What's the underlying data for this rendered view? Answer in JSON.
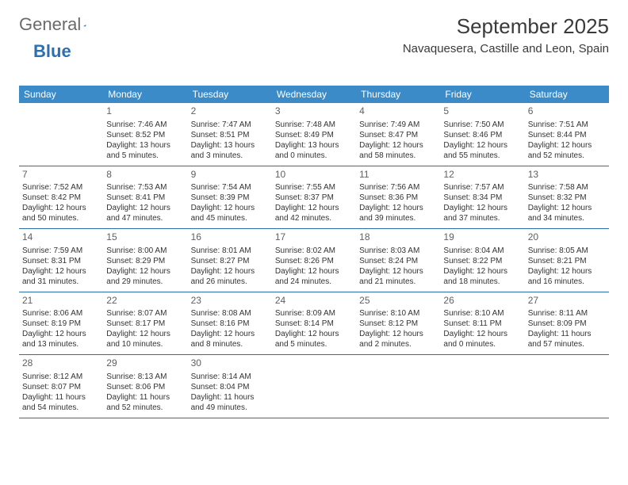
{
  "logo": {
    "part1": "General",
    "part2": "Blue"
  },
  "title": "September 2025",
  "location": "Navaquesera, Castille and Leon, Spain",
  "weekdays": [
    "Sunday",
    "Monday",
    "Tuesday",
    "Wednesday",
    "Thursday",
    "Friday",
    "Saturday"
  ],
  "colors": {
    "header_bg": "#3b8bc9",
    "header_text": "#ffffff",
    "week_border": "#2c6fa8",
    "logo_blue": "#2c6fb3",
    "text": "#333333"
  },
  "typography": {
    "title_fontsize": 26,
    "location_fontsize": 15,
    "weekday_fontsize": 12,
    "daynum_fontsize": 12,
    "cell_fontsize": 10
  },
  "weeks": [
    [
      null,
      {
        "n": "1",
        "sr": "Sunrise: 7:46 AM",
        "ss": "Sunset: 8:52 PM",
        "dl": "Daylight: 13 hours and 5 minutes."
      },
      {
        "n": "2",
        "sr": "Sunrise: 7:47 AM",
        "ss": "Sunset: 8:51 PM",
        "dl": "Daylight: 13 hours and 3 minutes."
      },
      {
        "n": "3",
        "sr": "Sunrise: 7:48 AM",
        "ss": "Sunset: 8:49 PM",
        "dl": "Daylight: 13 hours and 0 minutes."
      },
      {
        "n": "4",
        "sr": "Sunrise: 7:49 AM",
        "ss": "Sunset: 8:47 PM",
        "dl": "Daylight: 12 hours and 58 minutes."
      },
      {
        "n": "5",
        "sr": "Sunrise: 7:50 AM",
        "ss": "Sunset: 8:46 PM",
        "dl": "Daylight: 12 hours and 55 minutes."
      },
      {
        "n": "6",
        "sr": "Sunrise: 7:51 AM",
        "ss": "Sunset: 8:44 PM",
        "dl": "Daylight: 12 hours and 52 minutes."
      }
    ],
    [
      {
        "n": "7",
        "sr": "Sunrise: 7:52 AM",
        "ss": "Sunset: 8:42 PM",
        "dl": "Daylight: 12 hours and 50 minutes."
      },
      {
        "n": "8",
        "sr": "Sunrise: 7:53 AM",
        "ss": "Sunset: 8:41 PM",
        "dl": "Daylight: 12 hours and 47 minutes."
      },
      {
        "n": "9",
        "sr": "Sunrise: 7:54 AM",
        "ss": "Sunset: 8:39 PM",
        "dl": "Daylight: 12 hours and 45 minutes."
      },
      {
        "n": "10",
        "sr": "Sunrise: 7:55 AM",
        "ss": "Sunset: 8:37 PM",
        "dl": "Daylight: 12 hours and 42 minutes."
      },
      {
        "n": "11",
        "sr": "Sunrise: 7:56 AM",
        "ss": "Sunset: 8:36 PM",
        "dl": "Daylight: 12 hours and 39 minutes."
      },
      {
        "n": "12",
        "sr": "Sunrise: 7:57 AM",
        "ss": "Sunset: 8:34 PM",
        "dl": "Daylight: 12 hours and 37 minutes."
      },
      {
        "n": "13",
        "sr": "Sunrise: 7:58 AM",
        "ss": "Sunset: 8:32 PM",
        "dl": "Daylight: 12 hours and 34 minutes."
      }
    ],
    [
      {
        "n": "14",
        "sr": "Sunrise: 7:59 AM",
        "ss": "Sunset: 8:31 PM",
        "dl": "Daylight: 12 hours and 31 minutes."
      },
      {
        "n": "15",
        "sr": "Sunrise: 8:00 AM",
        "ss": "Sunset: 8:29 PM",
        "dl": "Daylight: 12 hours and 29 minutes."
      },
      {
        "n": "16",
        "sr": "Sunrise: 8:01 AM",
        "ss": "Sunset: 8:27 PM",
        "dl": "Daylight: 12 hours and 26 minutes."
      },
      {
        "n": "17",
        "sr": "Sunrise: 8:02 AM",
        "ss": "Sunset: 8:26 PM",
        "dl": "Daylight: 12 hours and 24 minutes."
      },
      {
        "n": "18",
        "sr": "Sunrise: 8:03 AM",
        "ss": "Sunset: 8:24 PM",
        "dl": "Daylight: 12 hours and 21 minutes."
      },
      {
        "n": "19",
        "sr": "Sunrise: 8:04 AM",
        "ss": "Sunset: 8:22 PM",
        "dl": "Daylight: 12 hours and 18 minutes."
      },
      {
        "n": "20",
        "sr": "Sunrise: 8:05 AM",
        "ss": "Sunset: 8:21 PM",
        "dl": "Daylight: 12 hours and 16 minutes."
      }
    ],
    [
      {
        "n": "21",
        "sr": "Sunrise: 8:06 AM",
        "ss": "Sunset: 8:19 PM",
        "dl": "Daylight: 12 hours and 13 minutes."
      },
      {
        "n": "22",
        "sr": "Sunrise: 8:07 AM",
        "ss": "Sunset: 8:17 PM",
        "dl": "Daylight: 12 hours and 10 minutes."
      },
      {
        "n": "23",
        "sr": "Sunrise: 8:08 AM",
        "ss": "Sunset: 8:16 PM",
        "dl": "Daylight: 12 hours and 8 minutes."
      },
      {
        "n": "24",
        "sr": "Sunrise: 8:09 AM",
        "ss": "Sunset: 8:14 PM",
        "dl": "Daylight: 12 hours and 5 minutes."
      },
      {
        "n": "25",
        "sr": "Sunrise: 8:10 AM",
        "ss": "Sunset: 8:12 PM",
        "dl": "Daylight: 12 hours and 2 minutes."
      },
      {
        "n": "26",
        "sr": "Sunrise: 8:10 AM",
        "ss": "Sunset: 8:11 PM",
        "dl": "Daylight: 12 hours and 0 minutes."
      },
      {
        "n": "27",
        "sr": "Sunrise: 8:11 AM",
        "ss": "Sunset: 8:09 PM",
        "dl": "Daylight: 11 hours and 57 minutes."
      }
    ],
    [
      {
        "n": "28",
        "sr": "Sunrise: 8:12 AM",
        "ss": "Sunset: 8:07 PM",
        "dl": "Daylight: 11 hours and 54 minutes."
      },
      {
        "n": "29",
        "sr": "Sunrise: 8:13 AM",
        "ss": "Sunset: 8:06 PM",
        "dl": "Daylight: 11 hours and 52 minutes."
      },
      {
        "n": "30",
        "sr": "Sunrise: 8:14 AM",
        "ss": "Sunset: 8:04 PM",
        "dl": "Daylight: 11 hours and 49 minutes."
      },
      null,
      null,
      null,
      null
    ]
  ]
}
